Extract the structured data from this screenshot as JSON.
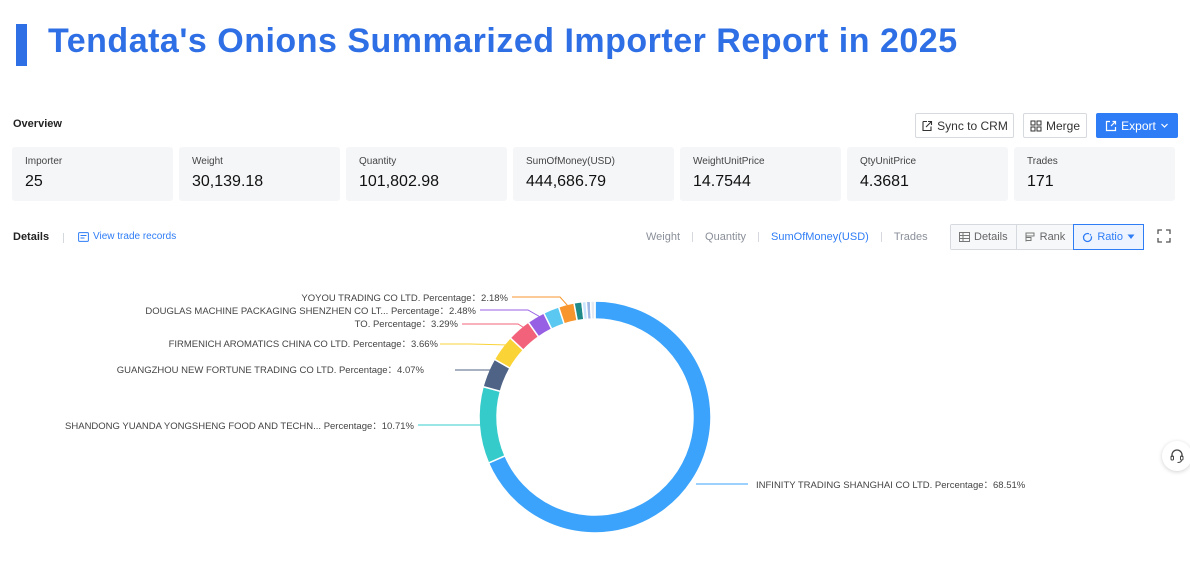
{
  "title": "Tendata's Onions Summarized Importer Report in 2025",
  "overview": {
    "label": "Overview",
    "sync_label": "Sync to CRM",
    "merge_label": "Merge",
    "export_label": "Export",
    "cards": [
      {
        "label": "Importer",
        "value": "25"
      },
      {
        "label": "Weight",
        "value": "30,139.18"
      },
      {
        "label": "Quantity",
        "value": "101,802.98"
      },
      {
        "label": "SumOfMoney(USD)",
        "value": "444,686.79"
      },
      {
        "label": "WeightUnitPrice",
        "value": "14.7544"
      },
      {
        "label": "QtyUnitPrice",
        "value": "4.3681"
      },
      {
        "label": "Trades",
        "value": "171"
      }
    ]
  },
  "details": {
    "label": "Details",
    "view_trade_records": "View trade records",
    "metric_tabs": [
      "Weight",
      "Quantity",
      "SumOfMoney(USD)",
      "Trades"
    ],
    "active_metric": "SumOfMoney(USD)",
    "view_buttons": {
      "details": "Details",
      "rank": "Rank",
      "ratio": "Ratio"
    },
    "active_view": "Ratio"
  },
  "colors": {
    "accent": "#2f7df6",
    "title": "#2f6fe6"
  },
  "chart_data": {
    "type": "pie",
    "style": "donut",
    "slices": [
      {
        "name": "INFINITY TRADING SHANGHAI CO LTD.",
        "label": "INFINITY TRADING SHANGHAI CO LTD.   Percentage：68.51%",
        "value": 68.51,
        "color": "#3ba3fb"
      },
      {
        "name": "SHANDONG YUANDA YONGSHENG FOOD AND TECHN...",
        "label": "SHANDONG YUANDA YONGSHENG FOOD AND TECHN...   Percentage：10.71%",
        "value": 10.71,
        "color": "#36cbcb"
      },
      {
        "name": "GUANGZHOU NEW FORTUNE TRADING CO LTD.",
        "label": "GUANGZHOU NEW FORTUNE TRADING CO LTD.   Percentage：4.07%",
        "value": 4.07,
        "color": "#4f6386"
      },
      {
        "name": "FIRMENICH AROMATICS CHINA CO LTD.",
        "label": "FIRMENICH AROMATICS CHINA CO LTD.   Percentage：3.66%",
        "value": 3.66,
        "color": "#fad337"
      },
      {
        "name": "TO.",
        "label": "TO.   Percentage：3.29%",
        "value": 3.29,
        "color": "#f2637b"
      },
      {
        "name": "DOUGLAS MACHINE PACKAGING SHENZHEN CO LT...",
        "label": "DOUGLAS MACHINE PACKAGING SHENZHEN CO LT...   Percentage：2.48%",
        "value": 2.48,
        "color": "#975fe4"
      },
      {
        "name": "",
        "label": "",
        "value": 2.2,
        "color": "#5ac8f0"
      },
      {
        "name": "YOYOU TRADING CO LTD.",
        "label": "YOYOU TRADING CO LTD.   Percentage：2.18%",
        "value": 2.18,
        "color": "#f8952c"
      },
      {
        "name": "",
        "label": "",
        "value": 1.1,
        "color": "#1f8a8a"
      },
      {
        "name": "",
        "label": "",
        "value": 0.6,
        "color": "#c9e5ff"
      },
      {
        "name": "",
        "label": "",
        "value": 0.6,
        "color": "#9fb9e6"
      },
      {
        "name": "",
        "label": "",
        "value": 0.6,
        "color": "#e4e9f2"
      }
    ]
  }
}
